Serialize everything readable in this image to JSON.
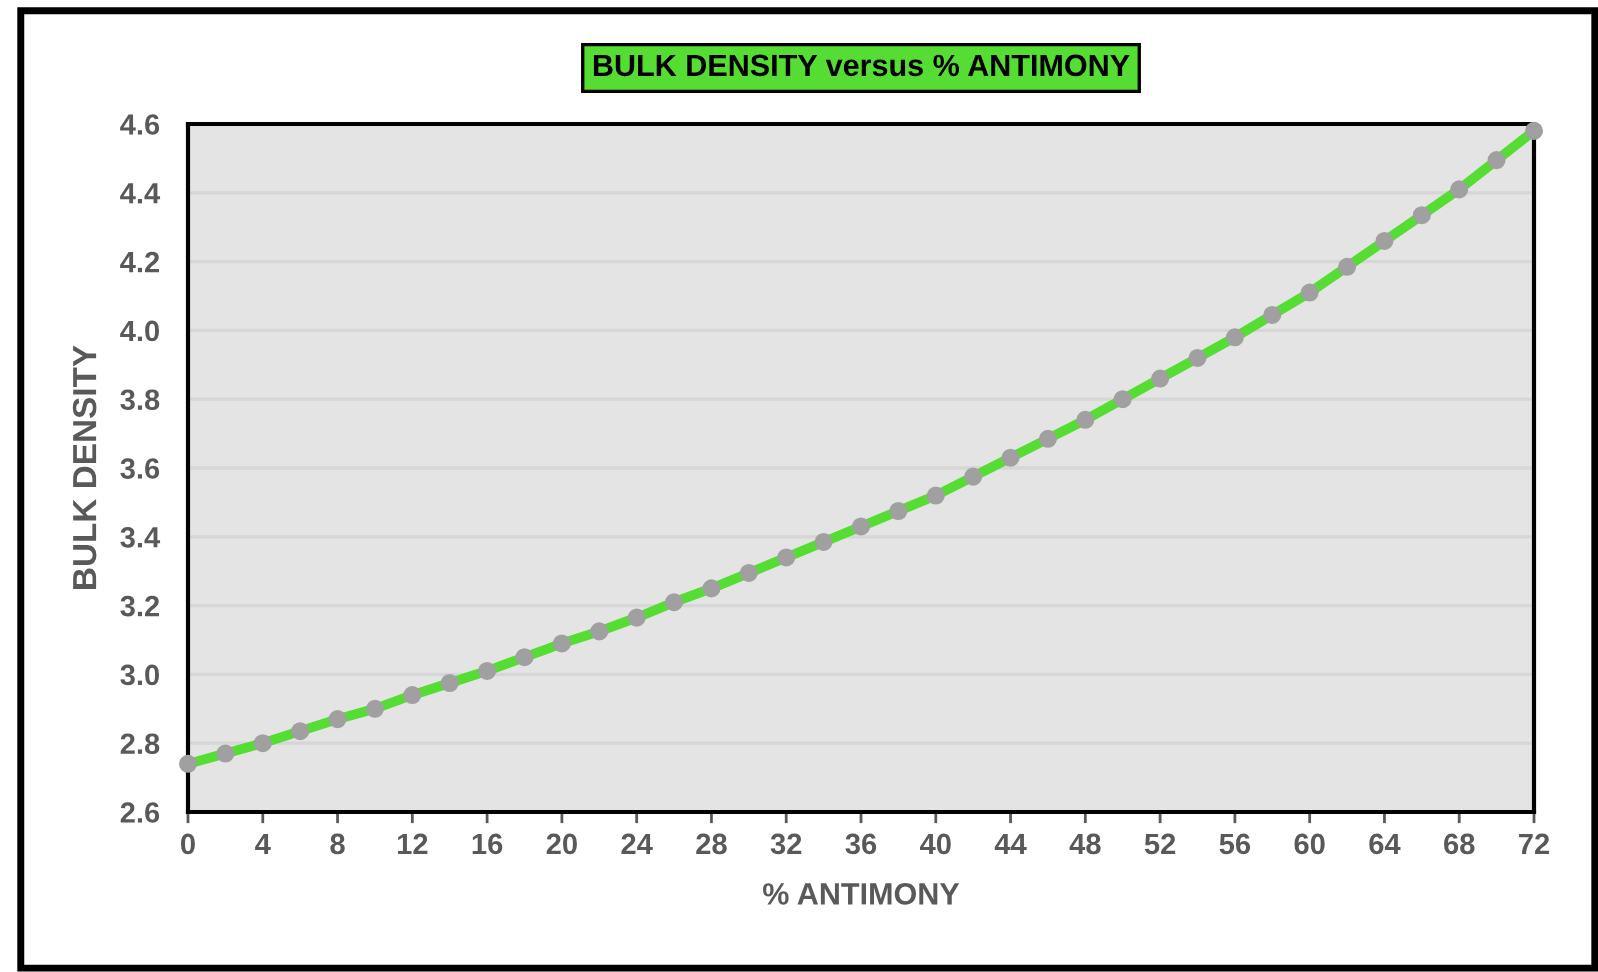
{
  "chart_data": {
    "type": "line",
    "title": "BULK DENSITY versus % ANTIMONY",
    "xlabel": "% ANTIMONY",
    "ylabel": "BULK DENSITY",
    "x": [
      0,
      2,
      4,
      6,
      8,
      10,
      12,
      14,
      16,
      18,
      20,
      22,
      24,
      26,
      28,
      30,
      32,
      34,
      36,
      38,
      40,
      42,
      44,
      46,
      48,
      50,
      52,
      54,
      56,
      58,
      60,
      62,
      64,
      66,
      68,
      70,
      72
    ],
    "series": [
      {
        "color": "#55dd33",
        "values": [
          2.74,
          2.77,
          2.8,
          2.835,
          2.87,
          2.9,
          2.94,
          2.975,
          3.01,
          3.05,
          3.09,
          3.125,
          3.165,
          3.21,
          3.25,
          3.295,
          3.34,
          3.385,
          3.43,
          3.475,
          3.52,
          3.575,
          3.63,
          3.685,
          3.74,
          3.8,
          3.86,
          3.92,
          3.98,
          4.045,
          4.11,
          4.185,
          4.26,
          4.335,
          4.41,
          4.495,
          4.58
        ]
      }
    ],
    "xlim": [
      0,
      72
    ],
    "xticks": [
      0,
      4,
      8,
      12,
      16,
      20,
      24,
      28,
      32,
      36,
      40,
      44,
      48,
      52,
      56,
      60,
      64,
      68,
      72
    ],
    "ylim": [
      2.6,
      4.6
    ],
    "yticks": [
      {
        "value": 2.6,
        "label": "2.6"
      },
      {
        "value": 2.8,
        "label": "2.8"
      },
      {
        "value": 3.0,
        "label": "3.0"
      },
      {
        "value": 3.2,
        "label": "3.2"
      },
      {
        "value": 3.4,
        "label": "3.4"
      },
      {
        "value": 3.6,
        "label": "3.6"
      },
      {
        "value": 3.8,
        "label": "3.8"
      },
      {
        "value": 4.0,
        "label": "4.0"
      },
      {
        "value": 4.2,
        "label": "4.2"
      },
      {
        "value": 4.4,
        "label": "4.4"
      },
      {
        "value": 4.6,
        "label": "4.6"
      }
    ],
    "grid": "y",
    "legend": false,
    "marker": "circle",
    "line_style": "solid"
  }
}
